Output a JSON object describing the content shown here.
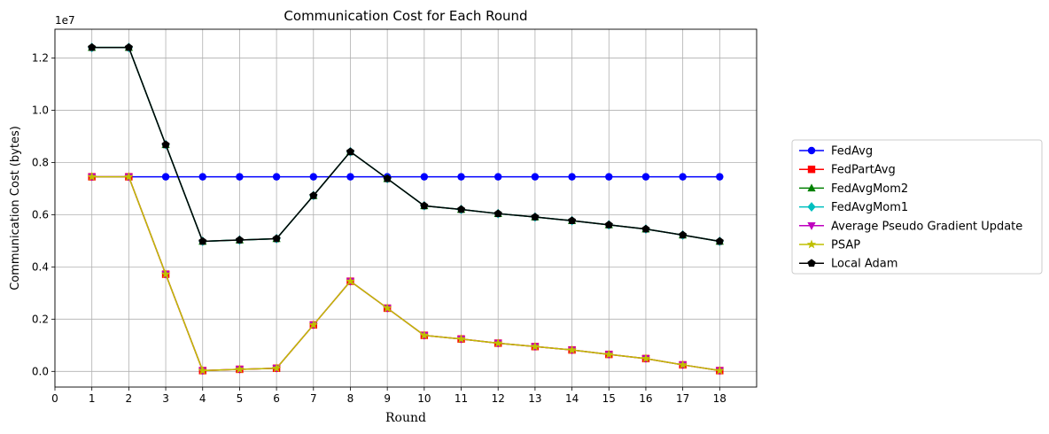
{
  "chart_data": {
    "type": "line",
    "title": "Communication Cost for Each Round",
    "xlabel": "Round",
    "ylabel": "Communication Cost (bytes)",
    "y_multiplier_label": "1e7",
    "y_scale": 10000000,
    "xlim": [
      0,
      19
    ],
    "ylim": [
      -0.06,
      1.31
    ],
    "x_ticks": [
      0,
      1,
      2,
      3,
      4,
      5,
      6,
      7,
      8,
      9,
      10,
      11,
      12,
      13,
      14,
      15,
      16,
      17,
      18
    ],
    "y_ticks": [
      0.0,
      0.2,
      0.4,
      0.6,
      0.8,
      1.0,
      1.2
    ],
    "y_tick_labels": [
      "0.0",
      "0.2",
      "0.4",
      "0.6",
      "0.8",
      "1.0",
      "1.2"
    ],
    "grid": true,
    "legend_position": "right",
    "x": [
      1,
      2,
      3,
      4,
      5,
      6,
      7,
      8,
      9,
      10,
      11,
      12,
      13,
      14,
      15,
      16,
      17,
      18
    ],
    "series": [
      {
        "name": "FedAvg",
        "color": "#0000ff",
        "marker": "circle",
        "values": [
          0.745,
          0.745,
          0.745,
          0.745,
          0.745,
          0.745,
          0.745,
          0.745,
          0.745,
          0.745,
          0.745,
          0.745,
          0.745,
          0.745,
          0.745,
          0.745,
          0.745,
          0.745
        ]
      },
      {
        "name": "FedPartAvg",
        "color": "#ff0000",
        "marker": "square",
        "values": [
          0.745,
          0.745,
          0.372,
          0.003,
          0.008,
          0.012,
          0.178,
          0.345,
          0.242,
          0.138,
          0.124,
          0.108,
          0.095,
          0.082,
          0.065,
          0.049,
          0.025,
          0.003
        ]
      },
      {
        "name": "FedAvgMom2",
        "color": "#008000",
        "marker": "triangle-up",
        "values": [
          1.24,
          1.24,
          0.868,
          0.498,
          0.503,
          0.508,
          0.673,
          0.841,
          0.738,
          0.634,
          0.62,
          0.604,
          0.591,
          0.577,
          0.561,
          0.545,
          0.522,
          0.498
        ]
      },
      {
        "name": "FedAvgMom1",
        "color": "#00bfbf",
        "marker": "diamond",
        "values": [
          1.24,
          1.24,
          0.868,
          0.498,
          0.503,
          0.508,
          0.673,
          0.841,
          0.738,
          0.634,
          0.62,
          0.604,
          0.591,
          0.577,
          0.561,
          0.545,
          0.522,
          0.498
        ]
      },
      {
        "name": "Average Pseudo Gradient Update",
        "color": "#bf00bf",
        "marker": "triangle-down",
        "values": [
          0.745,
          0.745,
          0.372,
          0.003,
          0.008,
          0.012,
          0.178,
          0.345,
          0.242,
          0.138,
          0.124,
          0.108,
          0.095,
          0.082,
          0.065,
          0.049,
          0.025,
          0.003
        ]
      },
      {
        "name": "PSAP",
        "color": "#bfbf00",
        "marker": "star",
        "values": [
          0.745,
          0.745,
          0.372,
          0.003,
          0.008,
          0.012,
          0.178,
          0.345,
          0.242,
          0.138,
          0.124,
          0.108,
          0.095,
          0.082,
          0.065,
          0.049,
          0.025,
          0.003
        ]
      },
      {
        "name": "Local Adam",
        "color": "#000000",
        "marker": "pentagon",
        "values": [
          1.24,
          1.24,
          0.868,
          0.498,
          0.503,
          0.508,
          0.673,
          0.841,
          0.738,
          0.634,
          0.62,
          0.604,
          0.591,
          0.577,
          0.561,
          0.545,
          0.522,
          0.498
        ]
      }
    ]
  }
}
